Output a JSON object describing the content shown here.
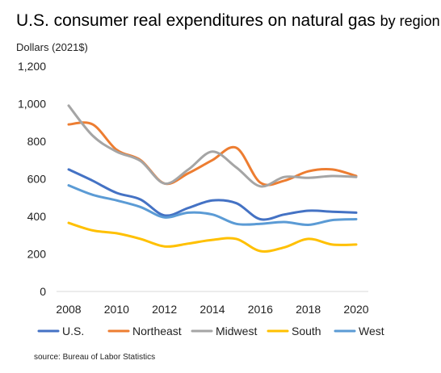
{
  "title": "U.S. consumer real expenditures on natural gas",
  "title_suffix": "by region",
  "subtitle": "Dollars (2021$)",
  "source": "source: Bureau of Labor Statistics",
  "chart_data": {
    "type": "line",
    "title": "U.S. consumer real expenditures on natural gas by region",
    "ylabel": "Dollars (2021$)",
    "xlabel": "",
    "x": [
      2008,
      2009,
      2010,
      2011,
      2012,
      2013,
      2014,
      2015,
      2016,
      2017,
      2018,
      2019,
      2020
    ],
    "xticks": [
      "2008",
      "2010",
      "2012",
      "2014",
      "2016",
      "2018",
      "2020"
    ],
    "yticks": [
      "0",
      "200",
      "400",
      "600",
      "800",
      "1,000",
      "1,200"
    ],
    "ylim": [
      0,
      1200
    ],
    "grid": false,
    "legend_position": "bottom",
    "series": [
      {
        "name": "U.S.",
        "color": "#4472C4",
        "values": [
          650,
          590,
          525,
          490,
          405,
          445,
          485,
          470,
          385,
          410,
          430,
          425,
          420
        ]
      },
      {
        "name": "Northeast",
        "color": "#ED7D31",
        "values": [
          890,
          890,
          755,
          700,
          575,
          630,
          700,
          765,
          580,
          590,
          640,
          650,
          615
        ]
      },
      {
        "name": "Midwest",
        "color": "#A5A5A5",
        "values": [
          990,
          830,
          745,
          695,
          575,
          650,
          745,
          660,
          560,
          610,
          605,
          615,
          610
        ]
      },
      {
        "name": "South",
        "color": "#FFC000",
        "values": [
          365,
          325,
          310,
          280,
          240,
          255,
          275,
          280,
          215,
          235,
          280,
          250,
          250
        ]
      },
      {
        "name": "West",
        "color": "#5B9BD5",
        "values": [
          565,
          515,
          485,
          450,
          395,
          420,
          410,
          360,
          360,
          370,
          355,
          380,
          385
        ]
      }
    ]
  }
}
